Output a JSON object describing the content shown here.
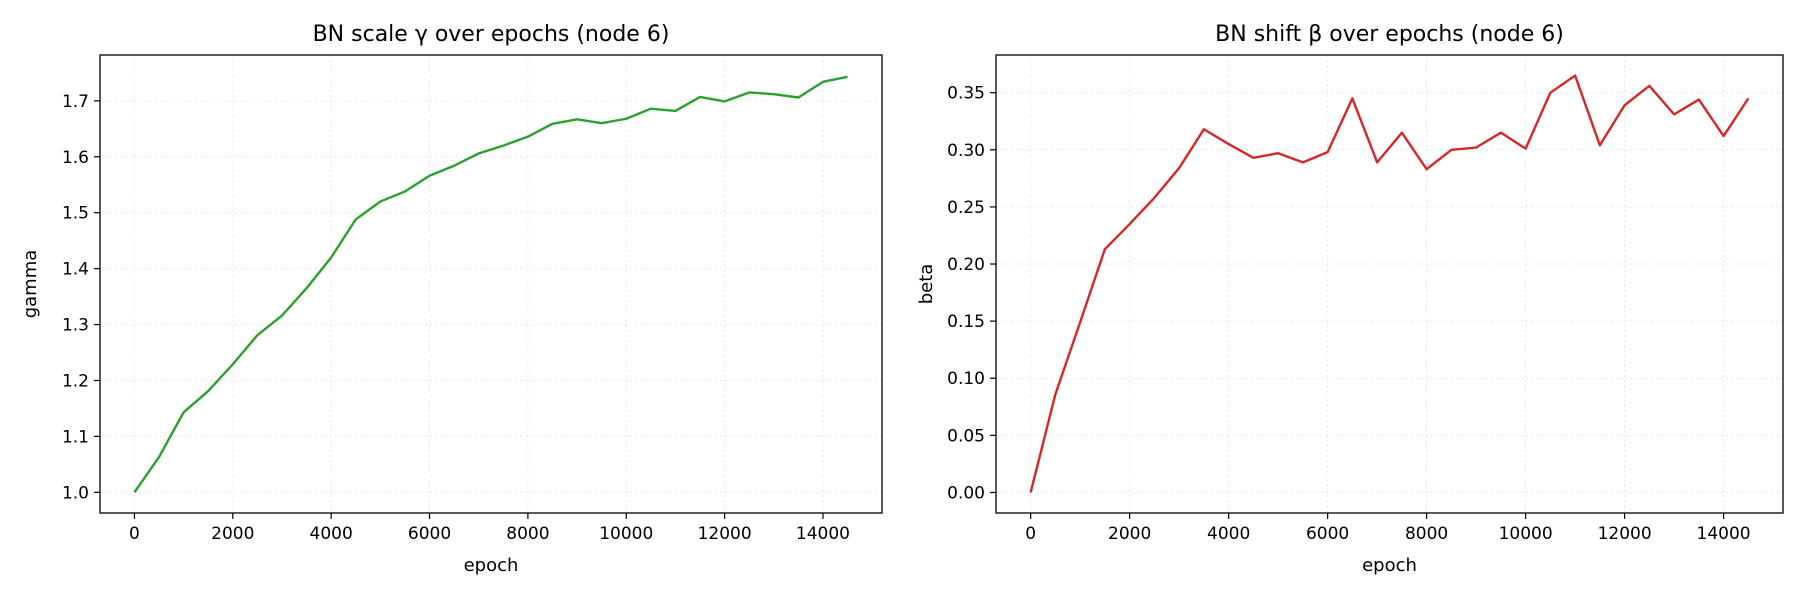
{
  "chart_data": [
    {
      "type": "line",
      "title": "BN scale γ over epochs (node 6)",
      "xlabel": "epoch",
      "ylabel": "gamma",
      "xlim": [
        -700,
        15200
      ],
      "ylim": [
        0.963,
        1.782
      ],
      "xticks": [
        0,
        2000,
        4000,
        6000,
        8000,
        10000,
        12000,
        14000
      ],
      "yticks": [
        1.0,
        1.1,
        1.2,
        1.3,
        1.4,
        1.5,
        1.6,
        1.7
      ],
      "ytick_labels": [
        "1.0",
        "1.1",
        "1.2",
        "1.3",
        "1.4",
        "1.5",
        "1.6",
        "1.7"
      ],
      "grid": true,
      "series": [
        {
          "color": "#2ca02c",
          "x": [
            0,
            500,
            1000,
            1500,
            2000,
            2500,
            3000,
            3500,
            4000,
            4500,
            5000,
            5500,
            6000,
            6500,
            7000,
            7500,
            8000,
            8500,
            9000,
            9500,
            10000,
            10500,
            11000,
            11500,
            12000,
            12500,
            13000,
            13500,
            14000,
            14500
          ],
          "values": [
            1.0,
            1.063,
            1.143,
            1.181,
            1.229,
            1.281,
            1.316,
            1.365,
            1.42,
            1.488,
            1.52,
            1.538,
            1.566,
            1.584,
            1.606,
            1.62,
            1.636,
            1.659,
            1.667,
            1.66,
            1.668,
            1.686,
            1.682,
            1.707,
            1.699,
            1.715,
            1.712,
            1.706,
            1.734,
            1.743
          ]
        }
      ]
    },
    {
      "type": "line",
      "title": "BN shift β over epochs (node 6)",
      "xlabel": "epoch",
      "ylabel": "beta",
      "xlim": [
        -700,
        15200
      ],
      "ylim": [
        -0.018,
        0.383
      ],
      "xticks": [
        0,
        2000,
        4000,
        6000,
        8000,
        10000,
        12000,
        14000
      ],
      "yticks": [
        0.0,
        0.05,
        0.1,
        0.15,
        0.2,
        0.25,
        0.3,
        0.35
      ],
      "ytick_labels": [
        "0.00",
        "0.05",
        "0.10",
        "0.15",
        "0.20",
        "0.25",
        "0.30",
        "0.35"
      ],
      "grid": true,
      "series": [
        {
          "color": "#d62728",
          "x": [
            0,
            500,
            1000,
            1500,
            2000,
            2500,
            3000,
            3500,
            4000,
            4500,
            5000,
            5500,
            6000,
            6500,
            7000,
            7500,
            8000,
            8500,
            9000,
            9500,
            10000,
            10500,
            11000,
            11500,
            12000,
            12500,
            13000,
            13500,
            14000,
            14500
          ],
          "values": [
            0.0,
            0.086,
            0.149,
            0.213,
            0.235,
            0.258,
            0.284,
            0.318,
            0.305,
            0.293,
            0.297,
            0.289,
            0.298,
            0.345,
            0.289,
            0.315,
            0.283,
            0.3,
            0.302,
            0.315,
            0.301,
            0.35,
            0.365,
            0.304,
            0.339,
            0.356,
            0.331,
            0.344,
            0.312,
            0.345
          ]
        }
      ]
    }
  ]
}
